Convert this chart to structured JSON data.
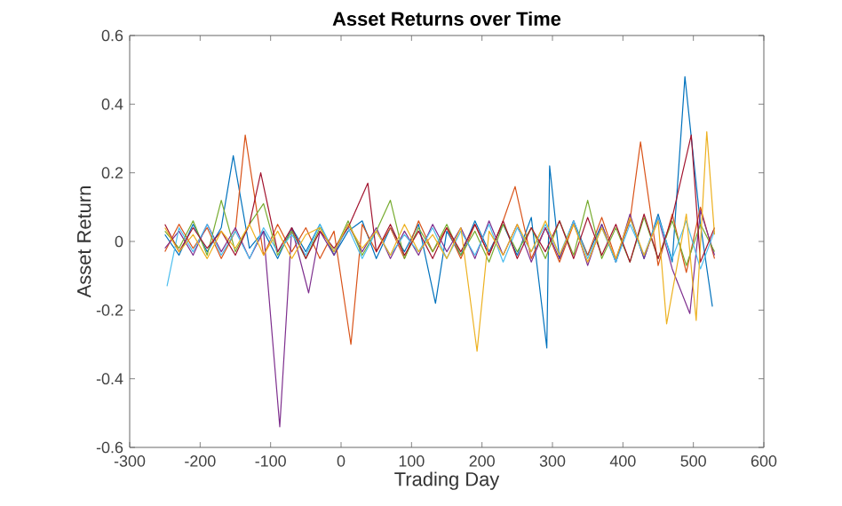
{
  "chart_data": {
    "type": "line",
    "title": "Asset Returns over Time",
    "xlabel": "Trading Day",
    "ylabel": "Asset Return",
    "xlim": [
      -300,
      600
    ],
    "xticks": [
      -300,
      -200,
      -100,
      0,
      100,
      200,
      300,
      400,
      500,
      600
    ],
    "ylim": [
      -0.6,
      0.6
    ],
    "yticks": [
      -0.6,
      -0.4,
      -0.2,
      0,
      0.2,
      0.4,
      0.6
    ],
    "series": [
      {
        "color": "#0072BD",
        "x": [
          -250,
          -230,
          -210,
          -190,
          -170,
          -153,
          -130,
          -110,
          -90,
          -70,
          -50,
          -30,
          -10,
          10,
          30,
          50,
          70,
          90,
          110,
          134,
          150,
          170,
          190,
          210,
          230,
          250,
          270,
          292,
          296,
          310,
          330,
          350,
          370,
          390,
          410,
          430,
          450,
          470,
          488,
          510,
          527
        ],
        "values": [
          0.02,
          -0.04,
          0.05,
          -0.03,
          0.04,
          0.25,
          -0.02,
          0.03,
          -0.05,
          0.04,
          -0.03,
          0.05,
          -0.04,
          0.03,
          0.06,
          -0.05,
          0.04,
          -0.03,
          0.05,
          -0.18,
          0.03,
          -0.04,
          0.06,
          -0.03,
          0.05,
          -0.04,
          0.07,
          -0.31,
          0.22,
          -0.05,
          0.06,
          -0.04,
          0.05,
          -0.06,
          0.07,
          -0.05,
          0.08,
          -0.06,
          0.48,
          0.05,
          -0.19
        ]
      },
      {
        "color": "#D95319",
        "x": [
          -250,
          -230,
          -210,
          -190,
          -170,
          -150,
          -136,
          -110,
          -90,
          -70,
          -50,
          -30,
          -10,
          14,
          30,
          50,
          70,
          90,
          110,
          130,
          150,
          170,
          190,
          210,
          230,
          247,
          270,
          290,
          310,
          330,
          350,
          370,
          390,
          410,
          425,
          450,
          470,
          490,
          510,
          530
        ],
        "values": [
          -0.03,
          0.05,
          -0.02,
          0.04,
          -0.05,
          0.03,
          0.31,
          -0.04,
          0.05,
          -0.03,
          0.04,
          -0.05,
          0.03,
          -0.3,
          0.05,
          -0.03,
          0.04,
          -0.05,
          0.06,
          -0.03,
          0.04,
          -0.05,
          0.05,
          -0.04,
          0.06,
          0.16,
          -0.05,
          0.04,
          -0.06,
          0.05,
          -0.04,
          0.07,
          -0.05,
          0.06,
          0.29,
          -0.07,
          0.08,
          -0.09,
          0.1,
          -0.05
        ]
      },
      {
        "color": "#7E2F8E",
        "x": [
          -250,
          -230,
          -210,
          -190,
          -170,
          -150,
          -130,
          -110,
          -87,
          -70,
          -46,
          -30,
          -10,
          10,
          30,
          50,
          70,
          90,
          110,
          130,
          150,
          170,
          190,
          210,
          230,
          250,
          270,
          290,
          310,
          330,
          350,
          370,
          390,
          410,
          430,
          450,
          470,
          495,
          510,
          530
        ],
        "values": [
          -0.02,
          0.03,
          -0.04,
          0.05,
          -0.03,
          0.04,
          -0.05,
          0.03,
          -0.54,
          0.04,
          -0.15,
          0.03,
          -0.04,
          0.05,
          -0.03,
          0.04,
          -0.05,
          0.03,
          -0.04,
          0.05,
          -0.03,
          0.04,
          -0.05,
          0.06,
          -0.04,
          0.05,
          -0.06,
          0.04,
          -0.05,
          0.06,
          -0.07,
          0.05,
          -0.06,
          0.08,
          -0.05,
          0.07,
          -0.08,
          -0.21,
          0.09,
          -0.04
        ]
      },
      {
        "color": "#77AC30",
        "x": [
          -250,
          -230,
          -210,
          -190,
          -170,
          -150,
          -130,
          -110,
          -90,
          -70,
          -50,
          -30,
          -10,
          10,
          30,
          50,
          70,
          90,
          110,
          130,
          150,
          170,
          190,
          210,
          230,
          250,
          270,
          290,
          310,
          330,
          350,
          370,
          390,
          410,
          430,
          450,
          470,
          490,
          510,
          530
        ],
        "values": [
          0.03,
          -0.02,
          0.06,
          -0.04,
          0.12,
          -0.03,
          0.05,
          0.11,
          -0.04,
          0.03,
          -0.05,
          0.04,
          -0.03,
          0.06,
          -0.04,
          0.03,
          0.12,
          -0.05,
          0.04,
          -0.03,
          0.05,
          -0.04,
          0.03,
          -0.06,
          0.05,
          -0.03,
          0.04,
          -0.05,
          0.06,
          -0.04,
          0.12,
          -0.05,
          0.04,
          -0.06,
          0.07,
          -0.05,
          0.06,
          -0.07,
          0.05,
          -0.03
        ]
      },
      {
        "color": "#4DBEEE",
        "x": [
          -247,
          -230,
          -210,
          -190,
          -170,
          -150,
          -130,
          -110,
          -90,
          -70,
          -50,
          -30,
          -10,
          10,
          30,
          50,
          70,
          90,
          110,
          130,
          150,
          170,
          190,
          210,
          230,
          250,
          270,
          290,
          310,
          330,
          350,
          370,
          390,
          410,
          430,
          450,
          470,
          490,
          510,
          530
        ],
        "values": [
          -0.13,
          0.04,
          -0.03,
          0.05,
          -0.04,
          0.03,
          -0.05,
          0.04,
          -0.03,
          0.02,
          -0.04,
          0.05,
          -0.03,
          0.04,
          -0.05,
          0.03,
          -0.04,
          0.02,
          -0.03,
          0.04,
          -0.05,
          0.03,
          -0.04,
          0.05,
          -0.06,
          0.04,
          -0.03,
          0.05,
          -0.04,
          0.06,
          -0.05,
          0.04,
          -0.06,
          0.05,
          -0.04,
          0.07,
          -0.05,
          0.06,
          -0.08,
          0.03
        ]
      },
      {
        "color": "#A2142F",
        "x": [
          -250,
          -230,
          -210,
          -190,
          -170,
          -150,
          -130,
          -114,
          -90,
          -70,
          -50,
          -30,
          -10,
          10,
          38,
          50,
          70,
          90,
          110,
          130,
          150,
          170,
          190,
          210,
          230,
          250,
          270,
          290,
          310,
          330,
          350,
          370,
          390,
          410,
          430,
          450,
          470,
          497,
          510,
          530
        ],
        "values": [
          0.05,
          -0.03,
          0.04,
          -0.02,
          0.03,
          -0.04,
          0.05,
          0.2,
          -0.03,
          0.04,
          -0.05,
          0.03,
          -0.02,
          0.04,
          0.17,
          -0.03,
          0.05,
          -0.04,
          0.03,
          -0.05,
          0.04,
          -0.03,
          0.05,
          -0.04,
          0.06,
          -0.05,
          0.04,
          -0.03,
          0.06,
          -0.05,
          0.07,
          -0.04,
          0.05,
          -0.06,
          0.08,
          -0.05,
          0.07,
          0.31,
          -0.06,
          0.04
        ]
      },
      {
        "color": "#EDB120",
        "x": [
          -250,
          -230,
          -210,
          -190,
          -170,
          -150,
          -130,
          -110,
          -90,
          -70,
          -50,
          -30,
          -10,
          10,
          30,
          50,
          70,
          90,
          110,
          130,
          150,
          170,
          193,
          210,
          230,
          250,
          270,
          290,
          310,
          330,
          350,
          370,
          390,
          410,
          430,
          450,
          462,
          490,
          504,
          519,
          530
        ],
        "values": [
          0.04,
          -0.03,
          0.02,
          -0.05,
          0.03,
          -0.02,
          0.05,
          -0.04,
          0.03,
          -0.05,
          0.02,
          0.04,
          -0.03,
          0.05,
          -0.02,
          0.03,
          -0.04,
          0.05,
          -0.03,
          0.02,
          -0.05,
          0.04,
          -0.32,
          0.03,
          -0.04,
          0.05,
          -0.03,
          0.06,
          -0.04,
          0.05,
          -0.06,
          0.04,
          -0.05,
          0.07,
          -0.04,
          0.06,
          -0.24,
          0.08,
          -0.23,
          0.32,
          0.02
        ]
      }
    ]
  }
}
